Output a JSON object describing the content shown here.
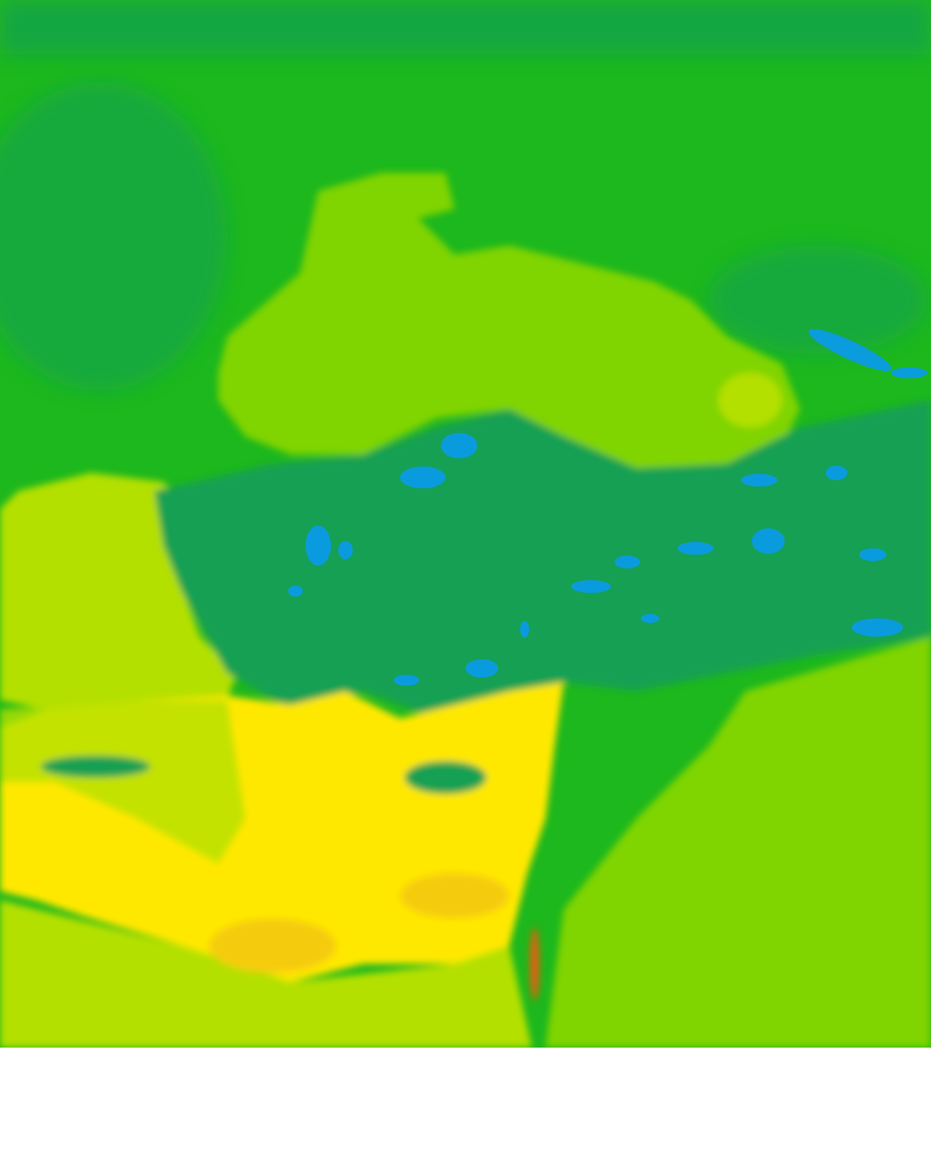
{
  "map": {
    "type": "temperature-field",
    "palette": {
      "cold_blue": "#0a9be6",
      "teal_green": "#12a052",
      "green": "#1db81d",
      "bright_green": "#3cc80c",
      "yellow_green": "#80d400",
      "lime": "#b4e000",
      "yellow": "#ffe800",
      "orange": "#f5cc10",
      "red": "#f05a10"
    }
  }
}
